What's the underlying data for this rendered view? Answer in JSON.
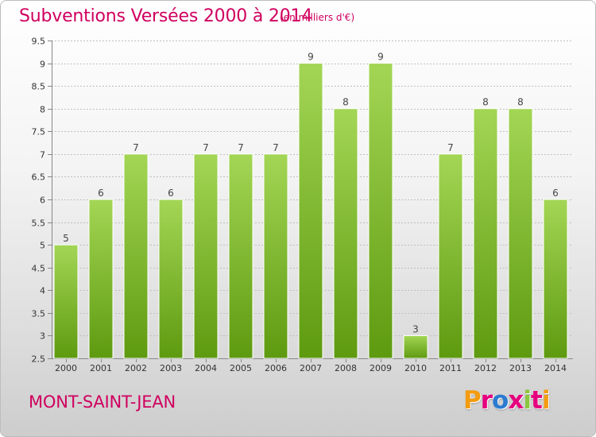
{
  "title": "Subventions Versées 2000 à 2014",
  "subtitle": "(en milliers d'€)",
  "location": "MONT-SAINT-JEAN",
  "brand": {
    "text": "Proxiti",
    "letter_colors": [
      "#f39c12",
      "#e6007e",
      "#2b7bd1",
      "#e6007e",
      "#8cc63f",
      "#e6007e",
      "#f39c12"
    ]
  },
  "colors": {
    "title": "#d0005f",
    "bar_top": "#a3d655",
    "bar_bottom": "#5e9a10",
    "grid": "#bfbfbf",
    "axis": "#888888"
  },
  "chart_data": {
    "type": "bar",
    "title": "Subventions Versées 2000 à 2014",
    "subtitle": "(en milliers d'€)",
    "xlabel": "",
    "ylabel": "",
    "categories": [
      "2000",
      "2001",
      "2002",
      "2003",
      "2004",
      "2005",
      "2006",
      "2007",
      "2008",
      "2009",
      "2010",
      "2011",
      "2012",
      "2013",
      "2014"
    ],
    "values": [
      5,
      6,
      7,
      6,
      7,
      7,
      7,
      9,
      8,
      9,
      3,
      7,
      8,
      8,
      6
    ],
    "ylim": [
      2.5,
      9.5
    ],
    "yticks": [
      "2.5",
      "3",
      "3.5",
      "4",
      "4.5",
      "5",
      "5.5",
      "6",
      "6.5",
      "7",
      "7.5",
      "8",
      "8.5",
      "9",
      "9.5"
    ],
    "grid": true,
    "legend": "none"
  }
}
